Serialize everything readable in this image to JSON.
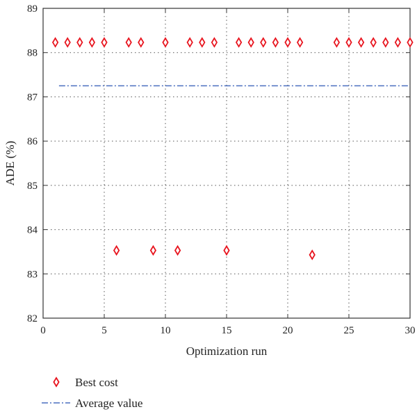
{
  "chart_data": {
    "type": "scatter",
    "xlabel": "Optimization run",
    "ylabel": "ADE (%)",
    "xlim": [
      0,
      30
    ],
    "ylim": [
      82,
      89
    ],
    "xticks": [
      "0",
      "5",
      "10",
      "15",
      "20",
      "25",
      "30"
    ],
    "yticks": [
      "82",
      "83",
      "84",
      "85",
      "86",
      "87",
      "88",
      "89"
    ],
    "grid": true,
    "legend_position": "bottom-left",
    "series": [
      {
        "name": "Best cost",
        "kind": "scatter",
        "marker": "diamond",
        "color": "#e8141e",
        "x": [
          1,
          2,
          3,
          4,
          5,
          6,
          7,
          8,
          9,
          10,
          11,
          12,
          13,
          14,
          15,
          16,
          17,
          18,
          19,
          20,
          21,
          22,
          24,
          25,
          26,
          27,
          28,
          29,
          30
        ],
        "y": [
          88.23,
          88.23,
          88.23,
          88.23,
          88.23,
          83.53,
          88.23,
          88.23,
          83.53,
          88.23,
          83.53,
          88.23,
          88.23,
          88.23,
          83.53,
          88.23,
          88.23,
          88.23,
          88.23,
          88.23,
          88.23,
          83.43,
          88.23,
          88.23,
          88.23,
          88.23,
          88.23,
          88.23,
          88.23
        ]
      },
      {
        "name": "Average value",
        "kind": "line",
        "style": "dash-dot",
        "color": "#4a6fbf",
        "x": [
          1.3,
          30
        ],
        "y": [
          87.25,
          87.25
        ]
      }
    ]
  }
}
